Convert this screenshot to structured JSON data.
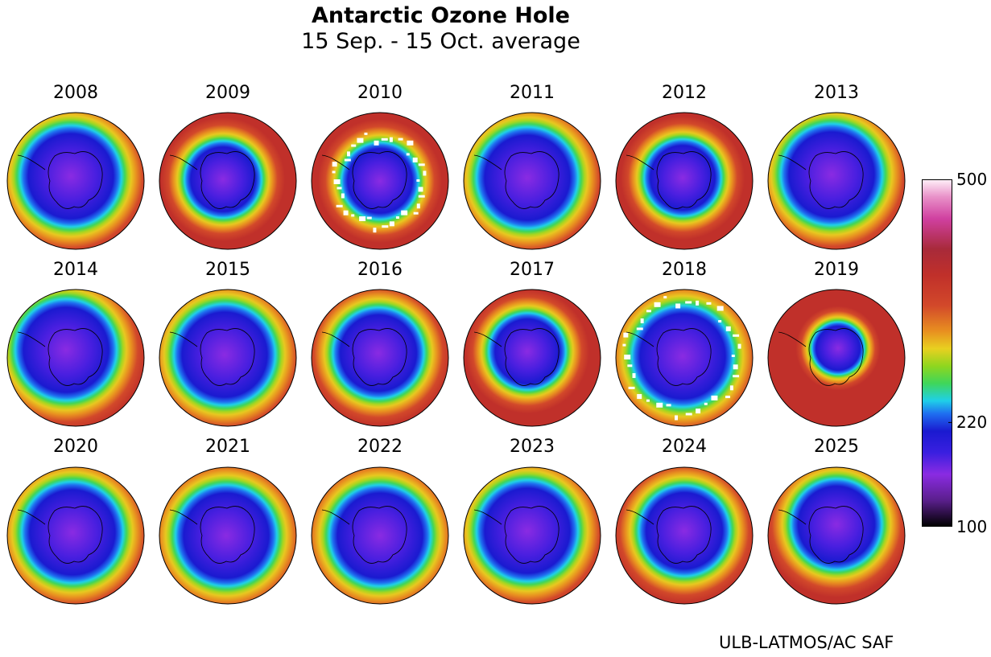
{
  "chart_data": {
    "type": "heatmap",
    "title": "Antarctic Ozone Hole",
    "subtitle": "15 Sep. - 15 Oct. average",
    "panels": [
      {
        "year": "2008",
        "hole": "large",
        "tilt": [
          -6,
          -6
        ]
      },
      {
        "year": "2009",
        "hole": "small",
        "tilt": [
          -6,
          -2
        ]
      },
      {
        "year": "2010",
        "hole": "small",
        "tilt": [
          0,
          0
        ],
        "missing": true
      },
      {
        "year": "2011",
        "hole": "large",
        "tilt": [
          -6,
          -4
        ]
      },
      {
        "year": "2012",
        "hole": "small",
        "tilt": [
          -2,
          -4
        ]
      },
      {
        "year": "2013",
        "hole": "large",
        "tilt": [
          -6,
          -8
        ]
      },
      {
        "year": "2014",
        "hole": "large",
        "tilt": [
          -12,
          -10
        ]
      },
      {
        "year": "2015",
        "hole": "large",
        "tilt": [
          -4,
          -4
        ]
      },
      {
        "year": "2016",
        "hole": "medium",
        "tilt": [
          -2,
          -6
        ]
      },
      {
        "year": "2017",
        "hole": "small",
        "tilt": [
          -6,
          -8
        ]
      },
      {
        "year": "2018",
        "hole": "large",
        "tilt": [
          -2,
          -2
        ],
        "missing": true
      },
      {
        "year": "2019",
        "hole": "tiny",
        "tilt": [
          2,
          -12
        ]
      },
      {
        "year": "2020",
        "hole": "large",
        "tilt": [
          -4,
          -4
        ]
      },
      {
        "year": "2021",
        "hole": "large",
        "tilt": [
          -2,
          0
        ]
      },
      {
        "year": "2022",
        "hole": "large",
        "tilt": [
          0,
          0
        ]
      },
      {
        "year": "2023",
        "hole": "large",
        "tilt": [
          -6,
          -6
        ]
      },
      {
        "year": "2024",
        "hole": "medium",
        "tilt": [
          0,
          -6
        ]
      },
      {
        "year": "2025",
        "hole": "medium",
        "tilt": [
          0,
          -14
        ]
      }
    ],
    "colorbar": {
      "min": 100,
      "max": 500,
      "ticks": [
        "500",
        "220",
        "100"
      ],
      "tick_values": [
        500,
        220,
        100
      ],
      "stops": [
        {
          "v": 100,
          "c": "#000000"
        },
        {
          "v": 130,
          "c": "#5a1f8c"
        },
        {
          "v": 160,
          "c": "#8a2be2"
        },
        {
          "v": 185,
          "c": "#3a1fe0"
        },
        {
          "v": 210,
          "c": "#1a1ad0"
        },
        {
          "v": 230,
          "c": "#1f6ff0"
        },
        {
          "v": 245,
          "c": "#1fd0e8"
        },
        {
          "v": 265,
          "c": "#3fd65a"
        },
        {
          "v": 285,
          "c": "#8fd61f"
        },
        {
          "v": 305,
          "c": "#e8d020"
        },
        {
          "v": 325,
          "c": "#e89020"
        },
        {
          "v": 355,
          "c": "#d2482a"
        },
        {
          "v": 390,
          "c": "#c0302a"
        },
        {
          "v": 420,
          "c": "#a82a3a"
        },
        {
          "v": 455,
          "c": "#d040a0"
        },
        {
          "v": 480,
          "c": "#e890c8"
        },
        {
          "v": 500,
          "c": "#fff0f8"
        }
      ]
    }
  },
  "credit": "ULB-LATMOS/AC SAF"
}
